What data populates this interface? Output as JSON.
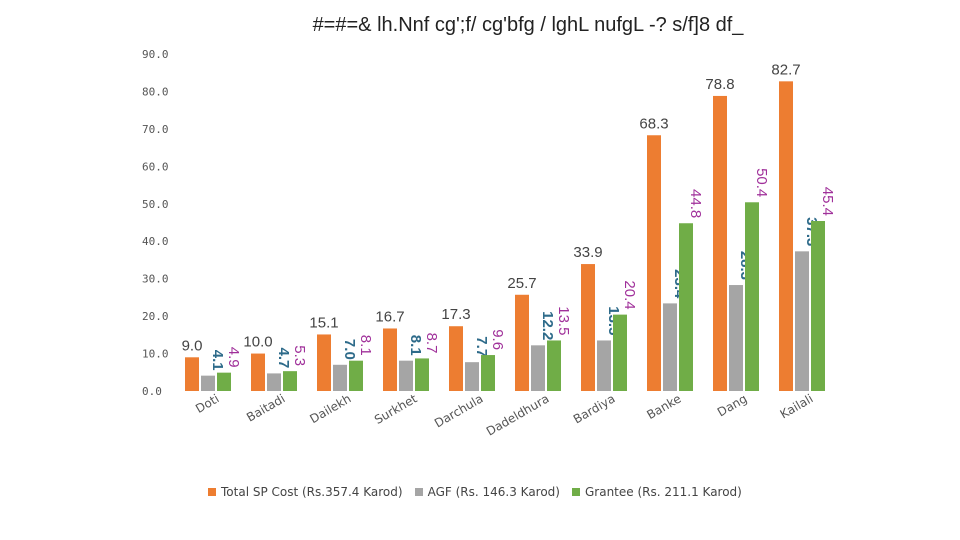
{
  "chart_data": {
    "type": "bar",
    "title": "#=#=& lh.Nnf cg';f/ cg'bfg / lghL nufgL -? s/f]8 df_",
    "xlabel": "",
    "ylabel": "",
    "ylim": [
      0,
      90
    ],
    "yticks": [
      "0.0",
      "10.0",
      "20.0",
      "30.0",
      "40.0",
      "50.0",
      "60.0",
      "70.0",
      "80.0",
      "90.0"
    ],
    "categories": [
      "Doti",
      "Baitadi",
      "Dailekh",
      "Surkhet",
      "Darchula",
      "Dadeldhura",
      "Bardiya",
      "Banke",
      "Dang",
      "Kailali"
    ],
    "series": [
      {
        "name": "Total SP Cost (Rs.357.4 Karod)",
        "color": "#ED7D31",
        "label_color": "#444444",
        "values": [
          9.0,
          10.0,
          15.1,
          16.7,
          17.3,
          25.7,
          33.9,
          68.3,
          78.8,
          82.7
        ],
        "labels": [
          "9.0",
          "10.0",
          "15.1",
          "16.7",
          "17.3",
          "25.7",
          "33.9",
          "68.3",
          "78.8",
          "82.7"
        ]
      },
      {
        "name": "AGF (Rs. 146.3 Karod)",
        "color": "#A5A5A5",
        "label_color": "#2E6B8A",
        "values": [
          4.1,
          4.7,
          7.0,
          8.1,
          7.7,
          12.2,
          13.5,
          23.4,
          28.3,
          37.3
        ],
        "labels": [
          "4.1",
          "4.7",
          "7.0",
          "8.1",
          "7.7",
          "12.2",
          "13.5",
          "23.4",
          "28.3",
          "37.3"
        ]
      },
      {
        "name": "Grantee (Rs. 211.1 Karod)",
        "color": "#70AD47",
        "label_color": "#A0309A",
        "values": [
          4.9,
          5.3,
          8.1,
          8.7,
          9.6,
          13.5,
          20.4,
          44.8,
          50.4,
          45.4
        ],
        "labels": [
          "4.9",
          "5.3",
          "8.1",
          "8.7",
          "9.6",
          "13.5",
          "20.4",
          "44.8",
          "50.4",
          "45.4"
        ]
      }
    ],
    "legend_position": "bottom"
  }
}
